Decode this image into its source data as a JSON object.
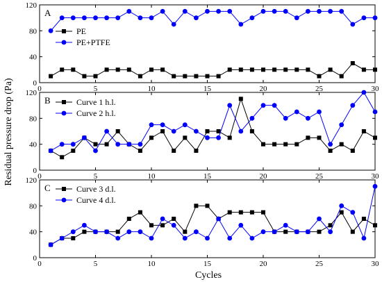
{
  "figure": {
    "ylabel": "Residual pressure drop (Pa)",
    "xlabel": "Cycles"
  },
  "chart_data": [
    {
      "type": "line",
      "panel": "A",
      "xlim": [
        0,
        30
      ],
      "ylim": [
        0,
        120
      ],
      "xticks": [
        0,
        5,
        10,
        15,
        20,
        25,
        30
      ],
      "yticks": [
        0,
        40,
        80,
        120
      ],
      "show_x_tick_labels": true,
      "legend_position": "middle-left",
      "x": [
        1,
        2,
        3,
        4,
        5,
        6,
        7,
        8,
        9,
        10,
        11,
        12,
        13,
        14,
        15,
        16,
        17,
        18,
        19,
        20,
        21,
        22,
        23,
        24,
        25,
        26,
        27,
        28,
        29,
        30
      ],
      "series": [
        {
          "name": "PE",
          "color": "#000000",
          "marker": "square",
          "values": [
            10,
            20,
            20,
            10,
            10,
            20,
            20,
            20,
            10,
            20,
            20,
            10,
            10,
            10,
            10,
            10,
            20,
            20,
            20,
            20,
            20,
            20,
            20,
            20,
            10,
            20,
            10,
            30,
            20,
            20
          ]
        },
        {
          "name": "PE+PTFE",
          "color": "#0000ff",
          "marker": "circle",
          "values": [
            80,
            100,
            100,
            100,
            100,
            100,
            100,
            110,
            100,
            100,
            110,
            90,
            110,
            100,
            110,
            110,
            110,
            90,
            100,
            110,
            110,
            110,
            100,
            110,
            110,
            110,
            110,
            90,
            100,
            100
          ]
        }
      ]
    },
    {
      "type": "line",
      "panel": "B",
      "xlim": [
        0,
        30
      ],
      "ylim": [
        0,
        120
      ],
      "xticks": [
        0,
        5,
        10,
        15,
        20,
        25,
        30
      ],
      "yticks": [
        0,
        40,
        80,
        120
      ],
      "show_x_tick_labels": true,
      "legend_position": "top-left",
      "x": [
        1,
        2,
        3,
        4,
        5,
        6,
        7,
        8,
        9,
        10,
        11,
        12,
        13,
        14,
        15,
        16,
        17,
        18,
        19,
        20,
        21,
        22,
        23,
        24,
        25,
        26,
        27,
        28,
        29,
        30
      ],
      "series": [
        {
          "name": "Curve 1 h.l.",
          "color": "#000000",
          "marker": "square",
          "values": [
            30,
            20,
            30,
            50,
            40,
            40,
            60,
            40,
            30,
            50,
            60,
            30,
            50,
            30,
            60,
            60,
            50,
            110,
            60,
            40,
            40,
            40,
            40,
            50,
            50,
            30,
            40,
            30,
            60,
            50
          ]
        },
        {
          "name": "Curve 2 h.l.",
          "color": "#0000ff",
          "marker": "circle",
          "values": [
            30,
            40,
            40,
            50,
            30,
            60,
            40,
            40,
            40,
            70,
            70,
            60,
            70,
            60,
            50,
            50,
            100,
            60,
            80,
            100,
            100,
            80,
            90,
            80,
            90,
            40,
            70,
            100,
            120,
            90
          ]
        }
      ]
    },
    {
      "type": "line",
      "panel": "C",
      "xlim": [
        0,
        30
      ],
      "ylim": [
        0,
        120
      ],
      "xticks": [
        0,
        5,
        10,
        15,
        20,
        25,
        30
      ],
      "yticks": [
        0,
        40,
        80,
        120
      ],
      "show_x_tick_labels": true,
      "legend_position": "top-left",
      "x": [
        1,
        2,
        3,
        4,
        5,
        6,
        7,
        8,
        9,
        10,
        11,
        12,
        13,
        14,
        15,
        16,
        17,
        18,
        19,
        20,
        21,
        22,
        23,
        24,
        25,
        26,
        27,
        28,
        29,
        30
      ],
      "series": [
        {
          "name": "Curve 3 d.l.",
          "color": "#000000",
          "marker": "square",
          "values": [
            20,
            30,
            30,
            40,
            40,
            40,
            40,
            60,
            70,
            50,
            50,
            60,
            40,
            80,
            80,
            60,
            70,
            70,
            70,
            70,
            40,
            40,
            40,
            40,
            40,
            50,
            70,
            40,
            60,
            50
          ]
        },
        {
          "name": "Curve 4 d.l.",
          "color": "#0000ff",
          "marker": "circle",
          "values": [
            20,
            30,
            40,
            50,
            40,
            40,
            30,
            40,
            40,
            30,
            60,
            50,
            30,
            40,
            30,
            60,
            30,
            50,
            30,
            40,
            40,
            50,
            40,
            40,
            60,
            40,
            80,
            70,
            30,
            110
          ]
        }
      ]
    }
  ]
}
